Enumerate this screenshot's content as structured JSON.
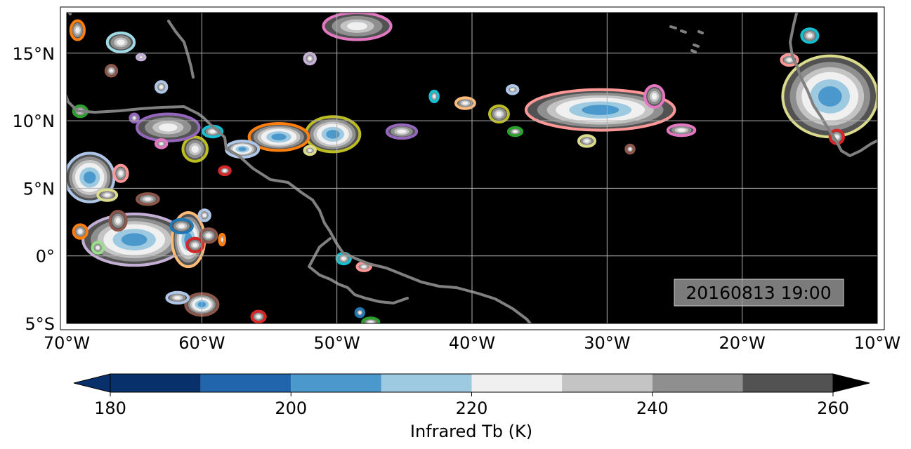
{
  "map": {
    "extent": {
      "lon": [
        -70,
        -10
      ],
      "lat": [
        -5,
        18
      ]
    },
    "lon_ticks": [
      -70,
      -60,
      -50,
      -40,
      -30,
      -20,
      -10
    ],
    "lat_ticks": [
      -5,
      0,
      5,
      10,
      15
    ],
    "lon_labels": [
      "70°W",
      "60°W",
      "50°W",
      "40°W",
      "30°W",
      "20°W",
      "10°W"
    ],
    "lat_labels": [
      "5°S",
      "0°",
      "5°N",
      "10°N",
      "15°N"
    ],
    "background": "#000000",
    "coastline_color": "#808080",
    "gridline_color": "#b0b0b0",
    "timestamp": "20160813 19:00"
  },
  "colorbar": {
    "label": "Infrared Tb (K)",
    "tick_values": [
      180,
      200,
      220,
      240,
      260
    ],
    "tick_labels": [
      "180",
      "200",
      "220",
      "240",
      "260"
    ],
    "bounds": [
      180,
      190,
      200,
      210,
      220,
      230,
      240,
      250,
      260
    ],
    "colors": [
      "#08306b",
      "#2166ac",
      "#4b98cc",
      "#9ecae1",
      "#f0f0f0",
      "#c4c4c4",
      "#8f8f8f",
      "#525252"
    ],
    "extend_low_color": "#08306b",
    "extend_high_color": "#000000"
  },
  "storm_clusters": [
    {
      "lon": -30.5,
      "lat": 10.8,
      "rx_deg": 5.5,
      "ry_deg": 1.5,
      "outline": "#ff9896",
      "core": "cold"
    },
    {
      "lon": -13.5,
      "lat": 11.8,
      "rx_deg": 3.5,
      "ry_deg": 3.0,
      "outline": "#dbdb8d",
      "core": "cold"
    },
    {
      "lon": -15.0,
      "lat": 16.3,
      "rx_deg": 0.6,
      "ry_deg": 0.5,
      "outline": "#17becf",
      "core": "warm"
    },
    {
      "lon": -16.5,
      "lat": 14.5,
      "rx_deg": 0.6,
      "ry_deg": 0.4,
      "outline": "#ff9896",
      "core": "warm"
    },
    {
      "lon": -13.0,
      "lat": 8.8,
      "rx_deg": 0.5,
      "ry_deg": 0.5,
      "outline": "#d62728",
      "core": "warm"
    },
    {
      "lon": -24.5,
      "lat": 9.3,
      "rx_deg": 1.0,
      "ry_deg": 0.4,
      "outline": "#e377c2",
      "core": "warm"
    },
    {
      "lon": -26.5,
      "lat": 11.8,
      "rx_deg": 0.7,
      "ry_deg": 0.8,
      "outline": "#e377c2",
      "core": "warm"
    },
    {
      "lon": -31.5,
      "lat": 8.5,
      "rx_deg": 0.6,
      "ry_deg": 0.4,
      "outline": "#dbdb8d",
      "core": "warm"
    },
    {
      "lon": -28.3,
      "lat": 7.9,
      "rx_deg": 0.3,
      "ry_deg": 0.3,
      "outline": "#8c564b",
      "core": "warm"
    },
    {
      "lon": -38.0,
      "lat": 10.5,
      "rx_deg": 0.7,
      "ry_deg": 0.6,
      "outline": "#bcbd22",
      "core": "warm"
    },
    {
      "lon": -36.8,
      "lat": 9.2,
      "rx_deg": 0.5,
      "ry_deg": 0.3,
      "outline": "#2ca02c",
      "core": "warm"
    },
    {
      "lon": -40.5,
      "lat": 11.3,
      "rx_deg": 0.7,
      "ry_deg": 0.4,
      "outline": "#ffbb78",
      "core": "warm"
    },
    {
      "lon": -42.8,
      "lat": 11.8,
      "rx_deg": 0.3,
      "ry_deg": 0.4,
      "outline": "#17becf",
      "core": "warm"
    },
    {
      "lon": -37.0,
      "lat": 12.3,
      "rx_deg": 0.4,
      "ry_deg": 0.3,
      "outline": "#aec7e8",
      "core": "warm"
    },
    {
      "lon": -45.2,
      "lat": 9.2,
      "rx_deg": 1.1,
      "ry_deg": 0.5,
      "outline": "#9467bd",
      "core": "warm"
    },
    {
      "lon": -50.3,
      "lat": 9.0,
      "rx_deg": 2.0,
      "ry_deg": 1.3,
      "outline": "#bcbd22",
      "core": "cold"
    },
    {
      "lon": -54.3,
      "lat": 8.8,
      "rx_deg": 2.2,
      "ry_deg": 1.0,
      "outline": "#ff7f0e",
      "core": "cold"
    },
    {
      "lon": -57.0,
      "lat": 7.9,
      "rx_deg": 1.2,
      "ry_deg": 0.6,
      "outline": "#aec7e8",
      "core": "cold"
    },
    {
      "lon": -52.0,
      "lat": 7.8,
      "rx_deg": 0.4,
      "ry_deg": 0.3,
      "outline": "#dbdb8d",
      "core": "warm"
    },
    {
      "lon": -60.5,
      "lat": 7.9,
      "rx_deg": 0.9,
      "ry_deg": 0.9,
      "outline": "#bcbd22",
      "core": "warm"
    },
    {
      "lon": -59.2,
      "lat": 9.2,
      "rx_deg": 0.7,
      "ry_deg": 0.4,
      "outline": "#17becf",
      "core": "warm"
    },
    {
      "lon": -62.5,
      "lat": 9.5,
      "rx_deg": 2.3,
      "ry_deg": 1.0,
      "outline": "#9467bd",
      "core": "warm"
    },
    {
      "lon": -63.0,
      "lat": 8.3,
      "rx_deg": 0.4,
      "ry_deg": 0.3,
      "outline": "#e377c2",
      "core": "warm"
    },
    {
      "lon": -58.3,
      "lat": 6.3,
      "rx_deg": 0.4,
      "ry_deg": 0.3,
      "outline": "#d62728",
      "core": "warm"
    },
    {
      "lon": -68.3,
      "lat": 5.8,
      "rx_deg": 1.8,
      "ry_deg": 1.8,
      "outline": "#aec7e8",
      "core": "cold"
    },
    {
      "lon": -66.0,
      "lat": 6.1,
      "rx_deg": 0.5,
      "ry_deg": 0.6,
      "outline": "#ff9896",
      "core": "warm"
    },
    {
      "lon": -67.0,
      "lat": 4.5,
      "rx_deg": 0.7,
      "ry_deg": 0.4,
      "outline": "#dbdb8d",
      "core": "warm"
    },
    {
      "lon": -65.0,
      "lat": 1.2,
      "rx_deg": 3.8,
      "ry_deg": 1.9,
      "outline": "#c5b0d5",
      "core": "cold"
    },
    {
      "lon": -61.0,
      "lat": 1.2,
      "rx_deg": 1.2,
      "ry_deg": 2.0,
      "outline": "#ffbb78",
      "core": "cold"
    },
    {
      "lon": -61.5,
      "lat": 2.2,
      "rx_deg": 0.8,
      "ry_deg": 0.5,
      "outline": "#1f77b4",
      "core": "warm"
    },
    {
      "lon": -60.5,
      "lat": 0.8,
      "rx_deg": 0.6,
      "ry_deg": 0.5,
      "outline": "#d62728",
      "core": "warm"
    },
    {
      "lon": -59.5,
      "lat": 1.5,
      "rx_deg": 0.6,
      "ry_deg": 0.5,
      "outline": "#8c564b",
      "core": "warm"
    },
    {
      "lon": -59.8,
      "lat": 3.0,
      "rx_deg": 0.4,
      "ry_deg": 0.4,
      "outline": "#aec7e8",
      "core": "warm"
    },
    {
      "lon": -58.5,
      "lat": 1.2,
      "rx_deg": 0.2,
      "ry_deg": 0.4,
      "outline": "#ff7f0e",
      "core": "warm"
    },
    {
      "lon": -69.0,
      "lat": 1.8,
      "rx_deg": 0.5,
      "ry_deg": 0.5,
      "outline": "#ff7f0e",
      "core": "warm"
    },
    {
      "lon": -67.7,
      "lat": 0.6,
      "rx_deg": 0.4,
      "ry_deg": 0.4,
      "outline": "#98df8a",
      "core": "warm"
    },
    {
      "lon": -66.2,
      "lat": 2.6,
      "rx_deg": 0.6,
      "ry_deg": 0.7,
      "outline": "#8c564b",
      "core": "warm"
    },
    {
      "lon": -60.0,
      "lat": -3.6,
      "rx_deg": 1.2,
      "ry_deg": 0.8,
      "outline": "#8c564b",
      "core": "cold"
    },
    {
      "lon": -61.8,
      "lat": -3.1,
      "rx_deg": 0.8,
      "ry_deg": 0.4,
      "outline": "#aec7e8",
      "core": "warm"
    },
    {
      "lon": -64.0,
      "lat": 4.2,
      "rx_deg": 0.8,
      "ry_deg": 0.4,
      "outline": "#8c564b",
      "core": "warm"
    },
    {
      "lon": -49.5,
      "lat": -0.2,
      "rx_deg": 0.5,
      "ry_deg": 0.4,
      "outline": "#17becf",
      "core": "warm"
    },
    {
      "lon": -48.0,
      "lat": -0.8,
      "rx_deg": 0.5,
      "ry_deg": 0.3,
      "outline": "#ff9896",
      "core": "warm"
    },
    {
      "lon": -48.3,
      "lat": -4.2,
      "rx_deg": 0.3,
      "ry_deg": 0.3,
      "outline": "#1f77b4",
      "core": "warm"
    },
    {
      "lon": -47.5,
      "lat": -4.9,
      "rx_deg": 0.6,
      "ry_deg": 0.3,
      "outline": "#2ca02c",
      "core": "warm"
    },
    {
      "lon": -55.8,
      "lat": -4.5,
      "rx_deg": 0.5,
      "ry_deg": 0.4,
      "outline": "#d62728",
      "core": "warm"
    },
    {
      "lon": -48.5,
      "lat": 17.0,
      "rx_deg": 2.5,
      "ry_deg": 1.0,
      "outline": "#e377c2",
      "core": "warm"
    },
    {
      "lon": -66.0,
      "lat": 15.8,
      "rx_deg": 1.0,
      "ry_deg": 0.7,
      "outline": "#9edae5",
      "core": "warm"
    },
    {
      "lon": -64.5,
      "lat": 14.7,
      "rx_deg": 0.3,
      "ry_deg": 0.2,
      "outline": "#c5b0d5",
      "core": "warm"
    },
    {
      "lon": -66.7,
      "lat": 13.7,
      "rx_deg": 0.4,
      "ry_deg": 0.4,
      "outline": "#8c564b",
      "core": "warm"
    },
    {
      "lon": -63.0,
      "lat": 12.5,
      "rx_deg": 0.4,
      "ry_deg": 0.4,
      "outline": "#aec7e8",
      "core": "warm"
    },
    {
      "lon": -69.2,
      "lat": 16.7,
      "rx_deg": 0.5,
      "ry_deg": 0.7,
      "outline": "#ff7f0e",
      "core": "warm"
    },
    {
      "lon": -69.0,
      "lat": 10.7,
      "rx_deg": 0.5,
      "ry_deg": 0.4,
      "outline": "#2ca02c",
      "core": "warm"
    },
    {
      "lon": -65.0,
      "lat": 10.2,
      "rx_deg": 0.3,
      "ry_deg": 0.3,
      "outline": "#9467bd",
      "core": "warm"
    },
    {
      "lon": -52.0,
      "lat": 14.6,
      "rx_deg": 0.4,
      "ry_deg": 0.4,
      "outline": "#c5b0d5",
      "core": "warm"
    }
  ]
}
